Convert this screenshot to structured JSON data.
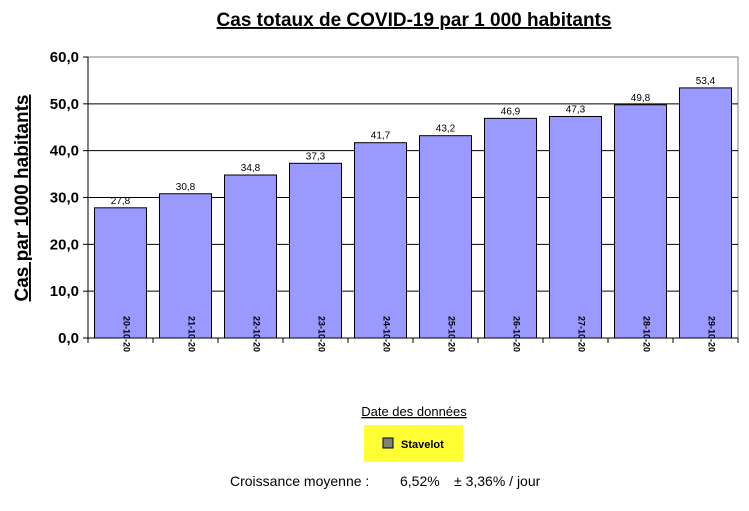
{
  "chart_data": {
    "type": "bar",
    "title": "Cas totaux de COVID-19 par 1 000 habitants",
    "xlabel": "Date des données",
    "ylabel": "Cas par 1000 habitants",
    "categories": [
      "20-10-20",
      "21-10-20",
      "22-10-20",
      "23-10-20",
      "24-10-20",
      "25-10-20",
      "26-10-20",
      "27-10-20",
      "28-10-20",
      "29-10-20"
    ],
    "series": [
      {
        "name": "Stavelot",
        "values": [
          27.8,
          30.8,
          34.8,
          37.3,
          41.7,
          43.2,
          46.9,
          47.3,
          49.8,
          53.4
        ],
        "labels": [
          "27,8",
          "30,8",
          "34,8",
          "37,3",
          "41,7",
          "43,2",
          "46,9",
          "47,3",
          "49,8",
          "53,4"
        ]
      }
    ],
    "ylim": [
      0,
      60
    ],
    "yticks": [
      {
        "value": 0,
        "label": "0,0"
      },
      {
        "value": 10,
        "label": "10,0"
      },
      {
        "value": 20,
        "label": "20,0"
      },
      {
        "value": 30,
        "label": "30,0"
      },
      {
        "value": 40,
        "label": "40,0"
      },
      {
        "value": 50,
        "label": "50,0"
      },
      {
        "value": 60,
        "label": "60,0"
      }
    ],
    "grid": "horizontal",
    "legend_position": "bottom-center",
    "colors": {
      "bar_fill": "#9999ff",
      "bar_stroke": "#000000",
      "legend_background": "#ffff33",
      "legend_swatch": "#808080"
    }
  },
  "growth": {
    "label": "Croissance moyenne :",
    "value": "6,52%",
    "spread": "± 3,36% / jour"
  }
}
